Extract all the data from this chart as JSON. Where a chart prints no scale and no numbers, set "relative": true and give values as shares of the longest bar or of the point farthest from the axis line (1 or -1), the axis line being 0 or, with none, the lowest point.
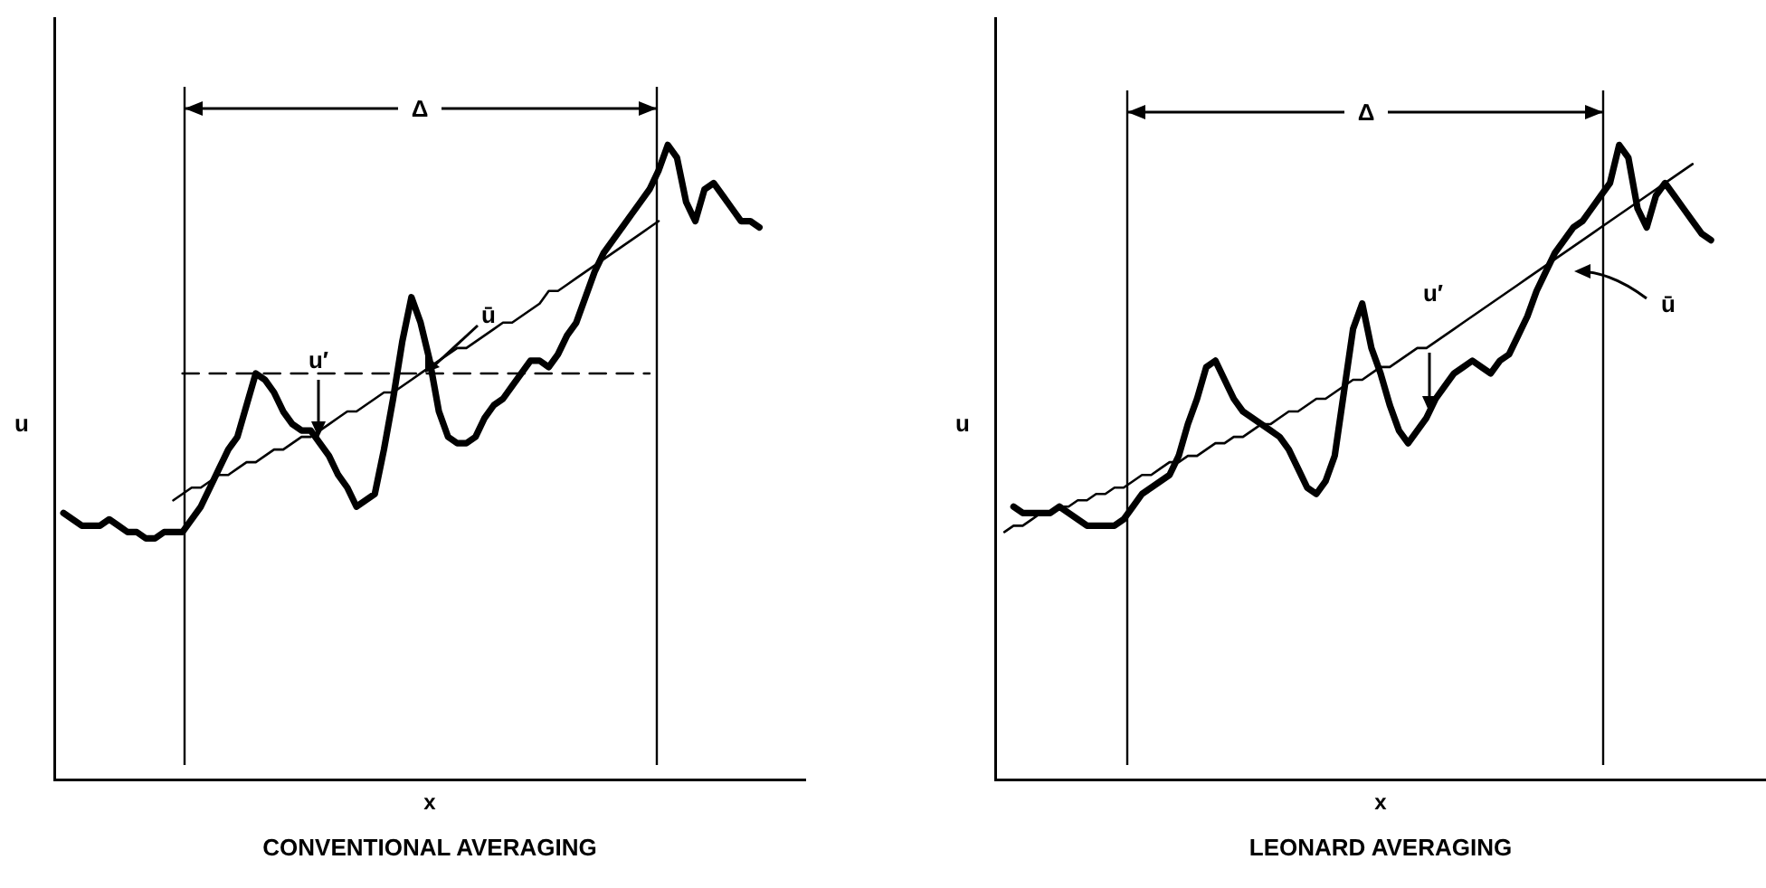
{
  "chart_data": [
    {
      "type": "line",
      "relative": true,
      "title": "CONVENTIONAL AVERAGING",
      "xlabel": "x",
      "ylabel": "u",
      "marker": "none",
      "annotations": [
        "Δ",
        "u′",
        "ū"
      ],
      "categories": [
        null,
        null,
        null,
        null,
        null,
        null,
        null,
        null,
        null,
        null,
        null,
        null,
        null,
        null,
        null,
        null,
        null,
        null,
        null,
        null,
        null,
        null,
        null,
        null,
        null,
        null,
        null,
        null,
        null,
        null,
        null,
        null,
        null,
        null,
        null,
        null,
        null,
        null,
        null,
        null,
        null,
        null,
        null,
        null,
        null,
        null,
        null,
        null,
        null,
        null,
        null,
        null,
        null,
        null,
        null,
        null,
        null,
        null,
        null,
        null,
        null,
        null,
        null,
        null,
        null,
        null,
        null,
        null,
        null,
        null,
        null,
        null,
        null,
        null,
        null,
        null,
        null,
        null,
        null,
        null,
        null,
        null,
        null
      ],
      "series": [
        {
          "color": "#000000",
          "values": [
            null,
            0.42,
            0.41,
            0.4,
            0.4,
            0.4,
            0.41,
            0.4,
            0.39,
            0.39,
            0.38,
            0.38,
            0.39,
            0.39,
            0.39,
            0.41,
            0.43,
            0.46,
            0.49,
            0.52,
            0.54,
            0.59,
            0.64,
            0.63,
            0.61,
            0.58,
            0.56,
            0.55,
            0.55,
            0.53,
            0.51,
            0.48,
            0.46,
            0.43,
            0.44,
            0.45,
            0.52,
            0.6,
            0.69,
            0.76,
            0.72,
            0.66,
            0.58,
            0.54,
            0.53,
            0.53,
            0.54,
            0.57,
            0.59,
            0.6,
            0.62,
            0.64,
            0.66,
            0.66,
            0.65,
            0.67,
            0.7,
            0.72,
            0.76,
            0.8,
            0.83,
            0.85,
            0.87,
            0.89,
            0.91,
            0.93,
            0.96,
            1.0,
            0.98,
            0.91,
            0.88,
            0.93,
            0.94,
            0.92,
            0.9,
            0.88,
            0.88,
            0.87,
            null,
            null,
            null,
            null,
            null
          ]
        },
        {
          "color": "#000000",
          "values": [
            null,
            null,
            null,
            null,
            null,
            null,
            null,
            null,
            null,
            null,
            null,
            null,
            null,
            0.44,
            0.45,
            0.46,
            0.46,
            0.47,
            0.48,
            0.48,
            0.49,
            0.5,
            0.5,
            0.51,
            0.52,
            0.52,
            0.53,
            0.54,
            0.54,
            0.55,
            0.56,
            0.57,
            0.58,
            0.58,
            0.59,
            0.6,
            0.61,
            0.61,
            0.62,
            0.63,
            0.64,
            0.65,
            0.66,
            0.67,
            0.68,
            0.68,
            0.69,
            0.7,
            0.71,
            0.72,
            0.72,
            0.73,
            0.74,
            0.75,
            0.77,
            0.77,
            0.78,
            0.79,
            0.8,
            0.81,
            0.82,
            0.83,
            0.84,
            0.85,
            0.86,
            0.87,
            0.88,
            null,
            null,
            null,
            null,
            null,
            null,
            null,
            null,
            null,
            null,
            null,
            null,
            null,
            null,
            null,
            null
          ]
        },
        {
          "color": "#000000",
          "line_style": "dashed",
          "values": [
            null,
            null,
            null,
            null,
            null,
            null,
            null,
            null,
            null,
            null,
            null,
            null,
            null,
            null,
            0.64,
            0.64,
            0.64,
            0.64,
            0.64,
            0.64,
            0.64,
            0.64,
            0.64,
            0.64,
            0.64,
            0.64,
            0.64,
            0.64,
            0.64,
            0.64,
            0.64,
            0.64,
            0.64,
            0.64,
            0.64,
            0.64,
            0.64,
            0.64,
            0.64,
            0.64,
            0.64,
            0.64,
            0.64,
            0.64,
            0.64,
            0.64,
            0.64,
            0.64,
            0.64,
            0.64,
            0.64,
            0.64,
            0.64,
            0.64,
            0.64,
            0.64,
            0.64,
            0.64,
            0.64,
            0.64,
            0.64,
            0.64,
            0.64,
            0.64,
            0.64,
            0.64,
            null,
            null,
            null,
            null,
            null,
            null,
            null,
            null,
            null,
            null,
            null,
            null,
            null,
            null,
            null,
            null,
            null
          ]
        }
      ]
    },
    {
      "type": "line",
      "relative": true,
      "title": "LEONARD AVERAGING",
      "xlabel": "x",
      "ylabel": "u",
      "marker": "none",
      "annotations": [
        "Δ",
        "u′",
        "ū"
      ],
      "categories": [
        null,
        null,
        null,
        null,
        null,
        null,
        null,
        null,
        null,
        null,
        null,
        null,
        null,
        null,
        null,
        null,
        null,
        null,
        null,
        null,
        null,
        null,
        null,
        null,
        null,
        null,
        null,
        null,
        null,
        null,
        null,
        null,
        null,
        null,
        null,
        null,
        null,
        null,
        null,
        null,
        null,
        null,
        null,
        null,
        null,
        null,
        null,
        null,
        null,
        null,
        null,
        null,
        null,
        null,
        null,
        null,
        null,
        null,
        null,
        null,
        null,
        null,
        null,
        null,
        null,
        null,
        null,
        null,
        null,
        null,
        null,
        null,
        null,
        null,
        null,
        null,
        null,
        null,
        null,
        null,
        null,
        null,
        null,
        null,
        null
      ],
      "series": [
        {
          "color": "#000000",
          "values": [
            null,
            null,
            0.43,
            0.42,
            0.42,
            0.42,
            0.42,
            0.43,
            0.42,
            0.41,
            0.4,
            0.4,
            0.4,
            0.4,
            0.41,
            0.43,
            0.45,
            0.46,
            0.47,
            0.48,
            0.51,
            0.56,
            0.6,
            0.65,
            0.66,
            0.63,
            0.6,
            0.58,
            0.57,
            0.56,
            0.55,
            0.54,
            0.52,
            0.49,
            0.46,
            0.45,
            0.47,
            0.51,
            0.61,
            0.71,
            0.75,
            0.68,
            0.64,
            0.59,
            0.55,
            0.53,
            0.55,
            0.57,
            0.6,
            0.62,
            0.64,
            0.65,
            0.66,
            0.65,
            0.64,
            0.66,
            0.67,
            0.7,
            0.73,
            0.77,
            0.8,
            0.83,
            0.85,
            0.87,
            0.88,
            0.9,
            0.92,
            0.94,
            1.0,
            0.98,
            0.9,
            0.87,
            0.92,
            0.94,
            0.92,
            0.9,
            0.88,
            0.86,
            0.85,
            null,
            null,
            null,
            null,
            null,
            null
          ]
        },
        {
          "color": "#000000",
          "values": [
            null,
            0.39,
            0.4,
            0.4,
            0.41,
            0.42,
            0.42,
            0.43,
            0.43,
            0.44,
            0.44,
            0.45,
            0.45,
            0.46,
            0.46,
            0.47,
            0.48,
            0.48,
            0.49,
            0.5,
            0.5,
            0.51,
            0.51,
            0.52,
            0.53,
            0.53,
            0.54,
            0.54,
            0.55,
            0.56,
            0.56,
            0.57,
            0.58,
            0.58,
            0.59,
            0.6,
            0.6,
            0.61,
            0.62,
            0.63,
            0.63,
            0.64,
            0.65,
            0.65,
            0.66,
            0.67,
            0.68,
            0.68,
            0.69,
            0.7,
            0.71,
            0.72,
            0.73,
            0.74,
            0.75,
            0.76,
            0.77,
            0.78,
            0.79,
            0.8,
            0.81,
            0.82,
            0.83,
            0.84,
            0.85,
            0.86,
            0.87,
            0.88,
            0.89,
            0.9,
            0.91,
            0.92,
            0.93,
            0.94,
            0.95,
            0.96,
            0.97,
            null,
            null,
            null,
            null,
            null,
            null,
            null,
            null
          ]
        }
      ]
    }
  ]
}
